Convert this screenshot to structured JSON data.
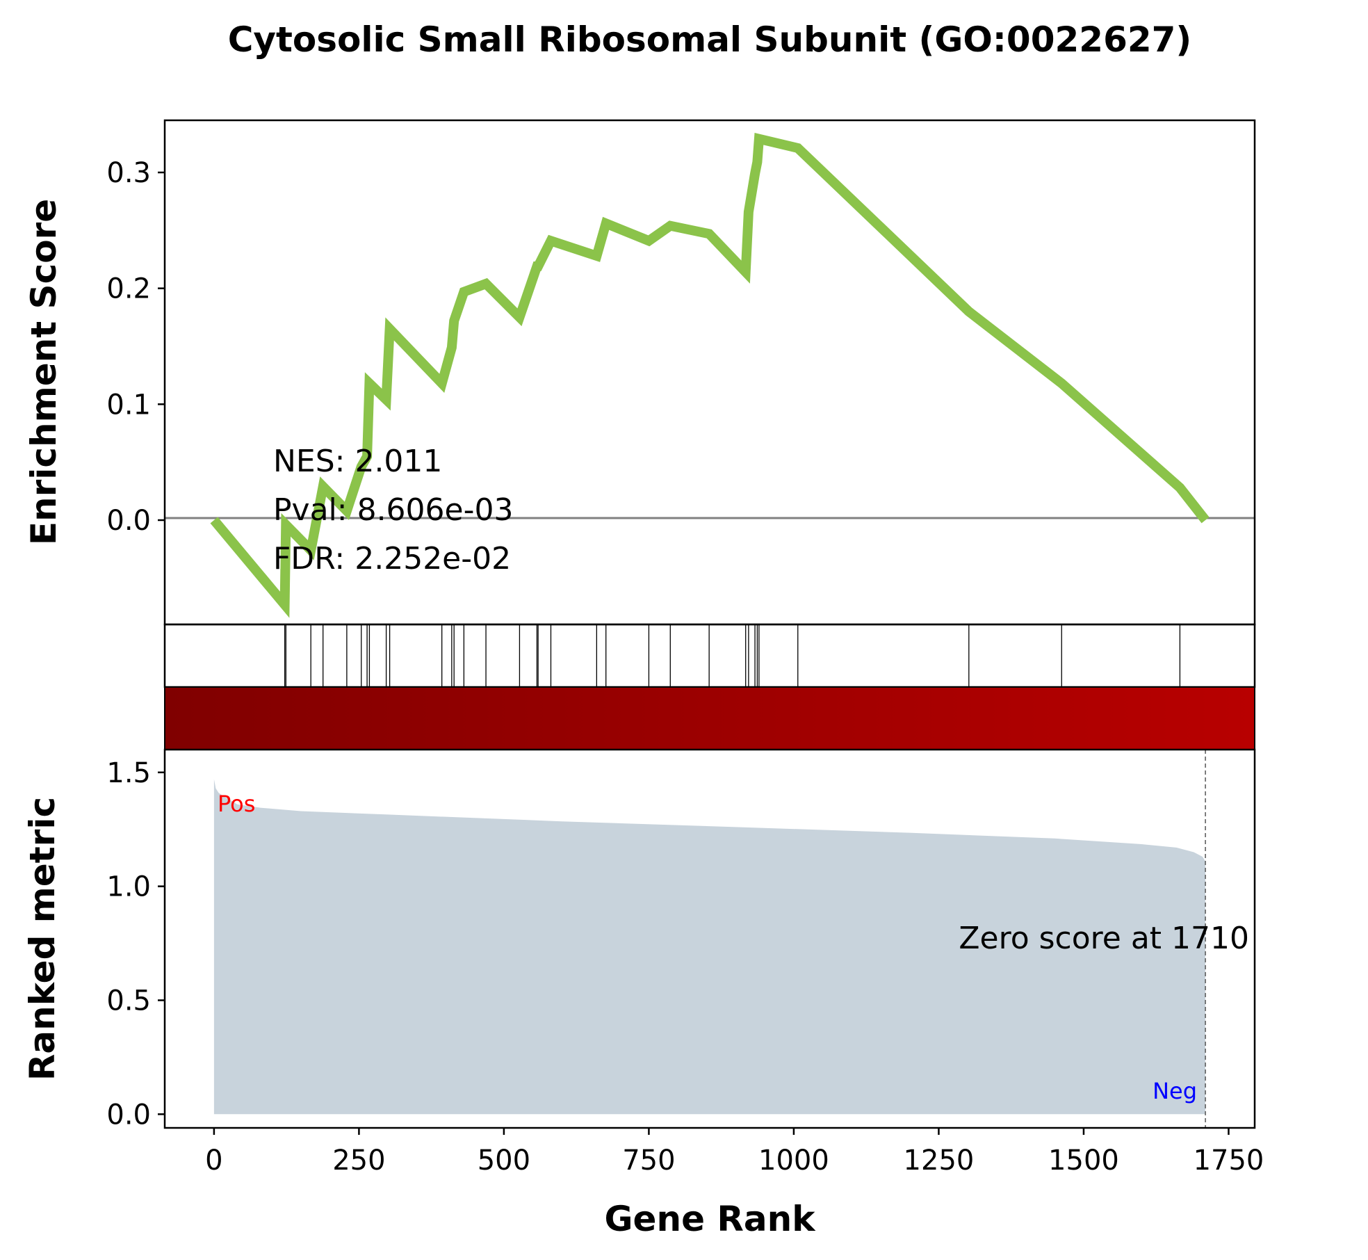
{
  "chart_data": {
    "type": "line",
    "title": "Cytosolic Small Ribosomal Subunit (GO:0022627)",
    "xlabel": "Gene Rank",
    "ylabel_top": "Enrichment Score",
    "ylabel_bottom": "Ranked metric",
    "xlim": [
      -85,
      1795
    ],
    "ylim_top": [
      -0.09,
      0.345
    ],
    "ylim_bottom": [
      -0.06,
      1.6
    ],
    "x_ticks": [
      "0",
      "250",
      "500",
      "750",
      "1000",
      "1250",
      "1500",
      "1750"
    ],
    "x_tick_values": [
      0,
      250,
      500,
      750,
      1000,
      1250,
      1500,
      1750
    ],
    "y_ticks_top": [
      "0.0",
      "0.1",
      "0.2",
      "0.3"
    ],
    "y_tick_values_top": [
      0.0,
      0.1,
      0.2,
      0.3
    ],
    "y_ticks_bottom": [
      "0.0",
      "0.5",
      "1.0",
      "1.5"
    ],
    "y_tick_values_bottom": [
      0.0,
      0.5,
      1.0,
      1.5
    ],
    "stats": {
      "nes": "NES: 2.011",
      "pval": "Pval: 8.606e-03",
      "fdr": "FDR: 2.252e-02"
    },
    "zero_score_label": "Zero score at 1710",
    "zero_score_rank": 1710,
    "pos_label": "Pos",
    "neg_label": "Neg",
    "hit_ranks": [
      122,
      124,
      167,
      188,
      229,
      254,
      264,
      268,
      297,
      303,
      393,
      410,
      414,
      431,
      469,
      527,
      557,
      559,
      581,
      660,
      676,
      750,
      787,
      854,
      917,
      922,
      933,
      937,
      940,
      1007,
      1302,
      1462,
      1666
    ],
    "es_curve": [
      {
        "x": 0,
        "y": 0.0
      },
      {
        "x": 122,
        "y": -0.073
      },
      {
        "x": 124,
        "y": -0.004
      },
      {
        "x": 167,
        "y": -0.026
      },
      {
        "x": 188,
        "y": 0.029
      },
      {
        "x": 229,
        "y": 0.008
      },
      {
        "x": 254,
        "y": 0.046
      },
      {
        "x": 264,
        "y": 0.055
      },
      {
        "x": 268,
        "y": 0.118
      },
      {
        "x": 297,
        "y": 0.104
      },
      {
        "x": 303,
        "y": 0.165
      },
      {
        "x": 393,
        "y": 0.118
      },
      {
        "x": 410,
        "y": 0.149
      },
      {
        "x": 414,
        "y": 0.172
      },
      {
        "x": 431,
        "y": 0.197
      },
      {
        "x": 469,
        "y": 0.204
      },
      {
        "x": 527,
        "y": 0.175
      },
      {
        "x": 557,
        "y": 0.219
      },
      {
        "x": 559,
        "y": 0.219
      },
      {
        "x": 581,
        "y": 0.241
      },
      {
        "x": 660,
        "y": 0.228
      },
      {
        "x": 676,
        "y": 0.256
      },
      {
        "x": 750,
        "y": 0.241
      },
      {
        "x": 787,
        "y": 0.254
      },
      {
        "x": 854,
        "y": 0.247
      },
      {
        "x": 917,
        "y": 0.214
      },
      {
        "x": 922,
        "y": 0.266
      },
      {
        "x": 933,
        "y": 0.299
      },
      {
        "x": 937,
        "y": 0.309
      },
      {
        "x": 940,
        "y": 0.329
      },
      {
        "x": 1007,
        "y": 0.321
      },
      {
        "x": 1302,
        "y": 0.18
      },
      {
        "x": 1462,
        "y": 0.118
      },
      {
        "x": 1666,
        "y": 0.028
      },
      {
        "x": 1710,
        "y": 0.0
      }
    ],
    "es_line_color": "#8bc34a",
    "metric_fill_color": "#c8d3dc",
    "metric_curve": [
      {
        "x": 0,
        "y": 1.47
      },
      {
        "x": 3,
        "y": 1.43
      },
      {
        "x": 8,
        "y": 1.41
      },
      {
        "x": 20,
        "y": 1.39
      },
      {
        "x": 40,
        "y": 1.36
      },
      {
        "x": 80,
        "y": 1.345
      },
      {
        "x": 150,
        "y": 1.33
      },
      {
        "x": 300,
        "y": 1.315
      },
      {
        "x": 600,
        "y": 1.285
      },
      {
        "x": 900,
        "y": 1.26
      },
      {
        "x": 1200,
        "y": 1.235
      },
      {
        "x": 1450,
        "y": 1.21
      },
      {
        "x": 1600,
        "y": 1.185
      },
      {
        "x": 1660,
        "y": 1.17
      },
      {
        "x": 1690,
        "y": 1.15
      },
      {
        "x": 1705,
        "y": 1.13
      },
      {
        "x": 1710,
        "y": 1.11
      }
    ],
    "colorbar": {
      "from": "#800000",
      "to": "#b80000"
    }
  }
}
